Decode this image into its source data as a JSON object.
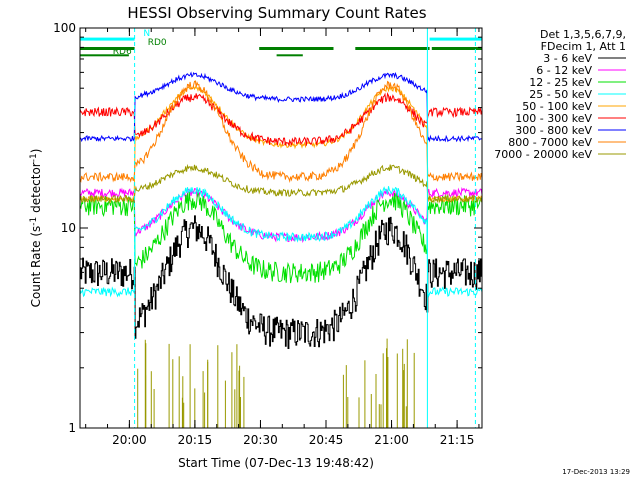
{
  "chart_data": {
    "type": "line",
    "title": "HESSI Observing Summary Count Rates",
    "xlabel": "Start Time (07-Dec-13 19:48:42)",
    "ylabel_main": "Count Rate (s",
    "ylabel_sup1": "-1",
    "ylabel_mid": " detector",
    "ylabel_sup2": "-1",
    "ylabel_end": ")",
    "y_scale": "log",
    "ylim": [
      1,
      100
    ],
    "xlim_minutes": [
      0,
      92
    ],
    "x_ticks": [
      {
        "label": "20:00",
        "minute": 11.3
      },
      {
        "label": "20:15",
        "minute": 26.3
      },
      {
        "label": "20:30",
        "minute": 41.3
      },
      {
        "label": "20:45",
        "minute": 56.3
      },
      {
        "label": "21:00",
        "minute": 71.3
      },
      {
        "label": "21:15",
        "minute": 86.3
      }
    ],
    "y_ticks": [
      {
        "label": "1",
        "value": 1
      },
      {
        "label": "10",
        "value": 10
      },
      {
        "label": "100",
        "value": 100
      }
    ],
    "legend_header": [
      "Det 1,3,5,6,7,9,",
      "FDecim 1, Att 1"
    ],
    "series": [
      {
        "name": "3 - 6 keV",
        "color": "#000000",
        "base": 3.0,
        "peak": 10.0,
        "noise": 0.18,
        "step": true
      },
      {
        "name": "6 - 12 keV",
        "color": "#ff00ff",
        "base": 9.0,
        "peak": 15.0,
        "noise": 0.05
      },
      {
        "name": "12 - 25 keV",
        "color": "#00e000",
        "base": 6.0,
        "peak": 14.0,
        "noise": 0.12
      },
      {
        "name": "25 - 50 keV",
        "color": "#00ffff",
        "base": 9.0,
        "peak": 15.5,
        "noise": 0.05
      },
      {
        "name": "50 - 100 keV",
        "color": "#ffa500",
        "base": 26.0,
        "peak": 50.0,
        "noise": 0.03
      },
      {
        "name": "100 - 300 keV",
        "color": "#ff0000",
        "base": 27.0,
        "peak": 45.0,
        "noise": 0.05
      },
      {
        "name": "300 - 800 keV",
        "color": "#0000ff",
        "base": 44.0,
        "peak": 58.0,
        "noise": 0.03
      },
      {
        "name": "800 - 7000 keV",
        "color": "#ff7f00",
        "base": 18.0,
        "peak": 52.0,
        "noise": 0.05
      },
      {
        "name": "7000 - 20000 keV",
        "color": "#999900",
        "base": 15.0,
        "peak": 20.0,
        "noise": 0.04
      }
    ],
    "out_of_orbit_levels": {
      "3 - 6 keV": 6.0,
      "6 - 12 keV": 15.0,
      "12 - 25 keV": 13.0,
      "25 - 50 keV": 4.8,
      "50 - 100 keV": 14.0,
      "100 - 300 keV": 38.0,
      "300 - 800 keV": 28.0,
      "800 - 7000 keV": 18.0,
      "7000 - 20000 keV": 14.0
    },
    "annotations": [
      {
        "label": "N",
        "color": "#00ffff"
      },
      {
        "label": "RD0",
        "color": "#007f00"
      },
      {
        "label": "RD6",
        "color": "#007f00"
      }
    ],
    "status_bars": {
      "night": {
        "color": "#00ffff",
        "intervals": [
          [
            0,
            12.5
          ],
          [
            80.0,
            92
          ]
        ]
      },
      "saa": {
        "color": "#007f00",
        "intervals": [
          [
            0,
            12.5
          ],
          [
            41.0,
            58.0
          ],
          [
            63.0,
            80.0
          ],
          [
            80.5,
            92
          ]
        ]
      },
      "rd6": {
        "color": "#007f00",
        "intervals": [
          [
            0,
            11.2
          ],
          [
            45.0,
            51.0
          ]
        ]
      }
    },
    "grid": false,
    "legend_position": "outside-right"
  },
  "footer": {
    "timestamp": "17-Dec-2013 13:29"
  }
}
